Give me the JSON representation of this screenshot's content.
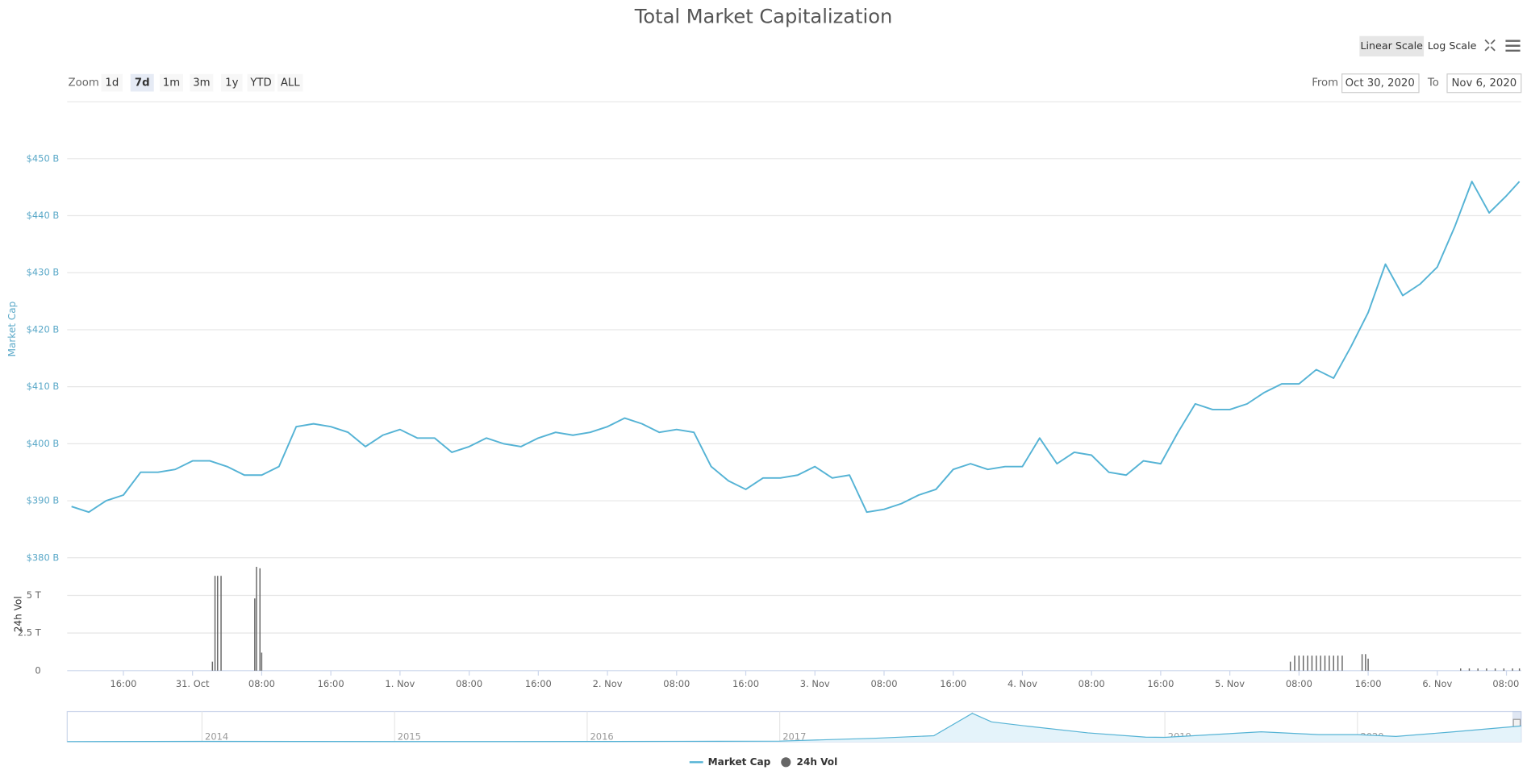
{
  "chart_data": {
    "type": "line",
    "title": "Total Market Capitalization",
    "y_title": "Market Cap",
    "grid": true,
    "xlim": [
      9.5,
      177.7
    ],
    "xticks": [
      {
        "value": 16,
        "label": "16:00"
      },
      {
        "value": 24,
        "label": "31. Oct"
      },
      {
        "value": 32,
        "label": "08:00"
      },
      {
        "value": 40,
        "label": "16:00"
      },
      {
        "value": 48,
        "label": "1. Nov"
      },
      {
        "value": 56,
        "label": "08:00"
      },
      {
        "value": 64,
        "label": "16:00"
      },
      {
        "value": 72,
        "label": "2. Nov"
      },
      {
        "value": 80,
        "label": "08:00"
      },
      {
        "value": 88,
        "label": "16:00"
      },
      {
        "value": 96,
        "label": "3. Nov"
      },
      {
        "value": 104,
        "label": "08:00"
      },
      {
        "value": 112,
        "label": "16:00"
      },
      {
        "value": 120,
        "label": "4. Nov"
      },
      {
        "value": 128,
        "label": "08:00"
      },
      {
        "value": 136,
        "label": "16:00"
      },
      {
        "value": 144,
        "label": "5. Nov"
      },
      {
        "value": 152,
        "label": "08:00"
      },
      {
        "value": 160,
        "label": "16:00"
      },
      {
        "value": 168,
        "label": "6. Nov"
      },
      {
        "value": 176,
        "label": "08:00"
      }
    ],
    "ylim": [
      380,
      450
    ],
    "yticks": [
      {
        "value": 380,
        "label": "$380 B"
      },
      {
        "value": 390,
        "label": "$390 B"
      },
      {
        "value": 400,
        "label": "$400 B"
      },
      {
        "value": 410,
        "label": "$410 B"
      },
      {
        "value": 420,
        "label": "$420 B"
      },
      {
        "value": 430,
        "label": "$430 B"
      },
      {
        "value": 440,
        "label": "$440 B"
      },
      {
        "value": 450,
        "label": "$450 B"
      }
    ],
    "series": [
      {
        "name": "Market Cap",
        "color": "#55b3d5",
        "x": [
          10,
          12,
          14,
          16,
          18,
          20,
          22,
          24,
          26,
          28,
          30,
          32,
          34,
          36,
          38,
          40,
          42,
          44,
          46,
          48,
          50,
          52,
          54,
          56,
          58,
          60,
          62,
          64,
          66,
          68,
          70,
          72,
          74,
          76,
          78,
          80,
          82,
          84,
          86,
          88,
          90,
          92,
          94,
          96,
          98,
          100,
          102,
          104,
          106,
          108,
          110,
          112,
          114,
          116,
          118,
          120,
          122,
          124,
          126,
          128,
          130,
          132,
          134,
          136,
          138,
          140,
          142,
          144,
          146,
          148,
          150,
          152,
          154,
          156,
          158,
          160,
          162,
          164,
          166,
          168,
          170,
          172,
          174,
          176,
          177.5
        ],
        "values": [
          389,
          388,
          390,
          391,
          395,
          395,
          395.5,
          397,
          397,
          396,
          394.5,
          394.5,
          396,
          403,
          403.5,
          403,
          402,
          399.5,
          401.5,
          402.5,
          401,
          401,
          398.5,
          399.5,
          401,
          400,
          399.5,
          401,
          402,
          401.5,
          402,
          403,
          404.5,
          403.5,
          402,
          402.5,
          402,
          396,
          393.5,
          392,
          394,
          394,
          394.5,
          396,
          394,
          394.5,
          388,
          388.5,
          389.5,
          391,
          392,
          395.5,
          396.5,
          395.5,
          396,
          396,
          401,
          396.5,
          398.5,
          398,
          395,
          394.5,
          397,
          396.5,
          402,
          407,
          406,
          406,
          407,
          409,
          410.5,
          410.5,
          413,
          411.5,
          417,
          423,
          431.5,
          426,
          428,
          431,
          438,
          446,
          440.5,
          443.5,
          446
        ]
      }
    ],
    "volume": {
      "type": "bar",
      "name": "24h Vol",
      "y_title": "24h Vol",
      "color": "#666666",
      "ylim": [
        0,
        7.5
      ],
      "yticks": [
        0,
        {
          "value": 2.5,
          "label": "2.5 T"
        },
        {
          "value": 5,
          "label": "5 T"
        }
      ],
      "x": [
        26.3,
        26.6,
        26.9,
        27.3,
        31.2,
        31.4,
        31.8,
        32.0,
        151,
        151.5,
        152,
        152.5,
        153,
        153.5,
        154,
        154.5,
        155,
        155.5,
        156,
        156.5,
        157,
        159.3,
        159.7,
        160,
        170.7,
        171.7,
        172.7,
        173.7,
        174.7,
        175.7,
        176.7,
        177.5
      ],
      "values": [
        0.6,
        6.3,
        6.3,
        6.3,
        4.8,
        6.9,
        6.8,
        1.2,
        0.6,
        1,
        1,
        1,
        1,
        1,
        1,
        1,
        1,
        1,
        1,
        1,
        1,
        1.1,
        1.1,
        0.8,
        0.15,
        0.15,
        0.15,
        0.15,
        0.15,
        0.15,
        0.15,
        0.15
      ]
    },
    "navigator": {
      "type": "area",
      "color": "#55b3d5",
      "xlim": [
        2013.3,
        2020.85
      ],
      "ylim": [
        0,
        850
      ],
      "xticks": [
        2014,
        2015,
        2016,
        2017,
        2018,
        2019,
        2020
      ],
      "x": [
        2013.3,
        2014,
        2014.5,
        2015,
        2015.5,
        2016,
        2016.5,
        2017,
        2017.5,
        2017.8,
        2018,
        2018.1,
        2018.3,
        2018.6,
        2018.9,
        2019,
        2019.5,
        2019.8,
        2020,
        2020.2,
        2020.5,
        2020.85
      ],
      "values": [
        3,
        10,
        8,
        5,
        4,
        7,
        12,
        18,
        100,
        170,
        800,
        560,
        430,
        250,
        130,
        125,
        280,
        200,
        200,
        150,
        280,
        445
      ]
    },
    "controls": {
      "zoom_label": "Zoom",
      "zoom_buttons": [
        "1d",
        "7d",
        "1m",
        "3m",
        "1y",
        "YTD",
        "ALL"
      ],
      "zoom_selected": 1,
      "from_label": "From",
      "from": "Oct 30, 2020",
      "to_label": "To",
      "to": "Nov 6, 2020",
      "scale_buttons": [
        "Linear Scale",
        "Log Scale"
      ],
      "log_scale": false
    }
  }
}
